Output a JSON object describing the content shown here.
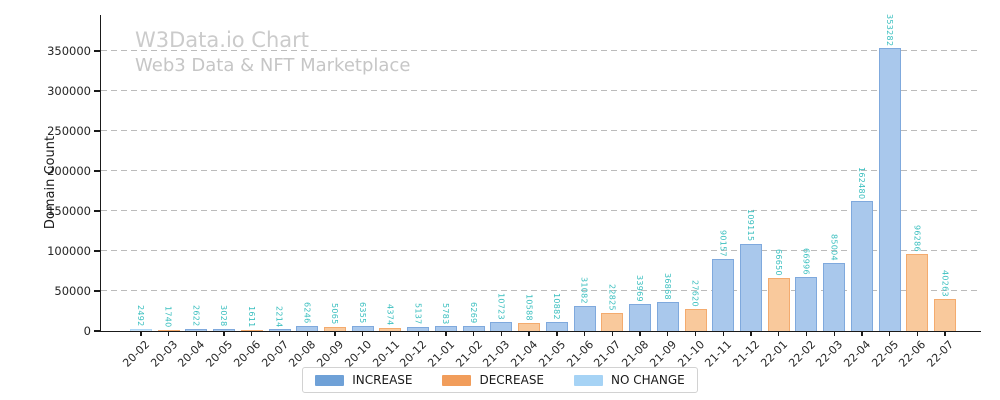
{
  "chart_data": {
    "type": "bar",
    "title": "W3Data.io Chart",
    "subtitle": "Web3 Data & NFT Marketplace",
    "ylabel": "Domain Count",
    "xlabel": "",
    "ylim": [
      0,
      395000
    ],
    "yticks": [
      0,
      50000,
      100000,
      150000,
      200000,
      250000,
      300000,
      350000
    ],
    "grid": "horizontal-dashed",
    "legend_position": "bottom-center",
    "categories": [
      "20-02",
      "20-03",
      "20-04",
      "20-05",
      "20-06",
      "20-07",
      "20-08",
      "20-09",
      "20-10",
      "20-11",
      "20-12",
      "21-01",
      "21-02",
      "21-03",
      "21-04",
      "21-05",
      "21-06",
      "21-07",
      "21-08",
      "21-09",
      "21-10",
      "21-11",
      "21-12",
      "22-01",
      "22-02",
      "22-03",
      "22-04",
      "22-05",
      "22-06",
      "22-07"
    ],
    "values": [
      2492,
      1740,
      2622,
      3028,
      1611,
      2214,
      6246,
      5065,
      6355,
      4374,
      5137,
      5783,
      6269,
      10723,
      10588,
      10882,
      31082,
      22825,
      33969,
      36868,
      27620,
      90157,
      109115,
      66650,
      66996,
      85004,
      162480,
      353282,
      96286,
      40263
    ],
    "bar_types": [
      "no_change",
      "decrease",
      "increase",
      "increase",
      "decrease",
      "increase",
      "increase",
      "decrease",
      "increase",
      "decrease",
      "increase",
      "increase",
      "increase",
      "increase",
      "decrease",
      "increase",
      "increase",
      "decrease",
      "increase",
      "increase",
      "decrease",
      "increase",
      "increase",
      "decrease",
      "increase",
      "increase",
      "increase",
      "increase",
      "decrease",
      "decrease"
    ],
    "legend": [
      {
        "label": "INCREASE",
        "type": "increase"
      },
      {
        "label": "DECREASE",
        "type": "decrease"
      },
      {
        "label": "NO CHANGE",
        "type": "no_change"
      }
    ],
    "colors": {
      "increase_legend": "#6fa1d7",
      "increase_fill": "#a9c8ec",
      "increase_edge": "#7fa9dd",
      "decrease_legend": "#f19d5b",
      "decrease_fill": "#f9c99c",
      "decrease_edge": "#f4ab6e",
      "no_change_legend": "#a6d3f5",
      "no_change_fill": "#c9e2f8",
      "no_change_edge": "#aed7f6",
      "value_label": "#3abfbf",
      "title_color": "#cbcbcb",
      "grid_color": "#bbbbbb",
      "axis_color": "#1a1a1a"
    }
  }
}
